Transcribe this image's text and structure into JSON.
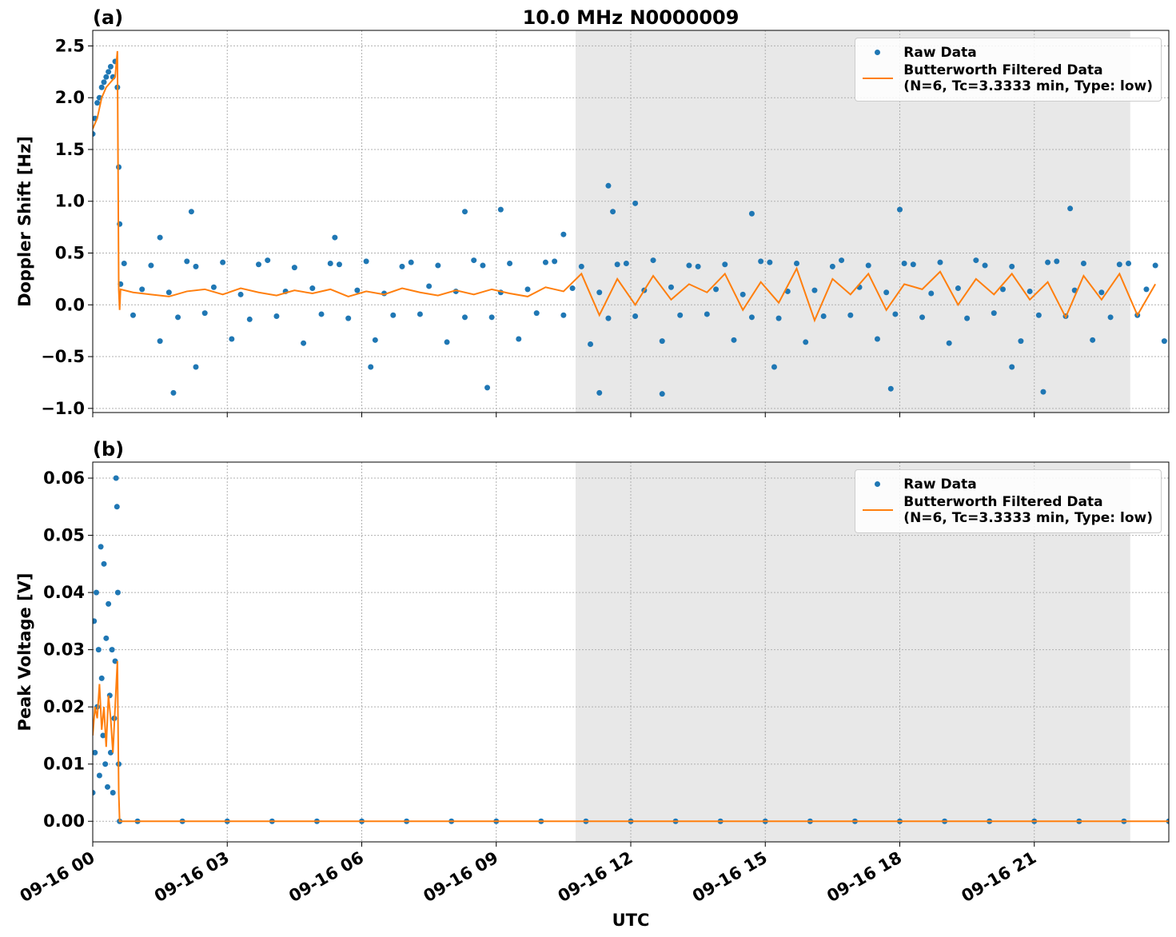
{
  "chart_data": [
    {
      "type": "scatter",
      "title": "10.0 MHz N0000009",
      "panel_label": "(a)",
      "ylabel": "Doppler Shift [Hz]",
      "xlim": [
        0,
        24
      ],
      "xticks": [
        0,
        3,
        6,
        9,
        12,
        15,
        18,
        21
      ],
      "ylim": [
        -1.04,
        2.65
      ],
      "yticks": [
        {
          "value": -1.0,
          "label": "−1.0"
        },
        {
          "value": -0.5,
          "label": "−0.5"
        },
        {
          "value": 0.0,
          "label": "0.0"
        },
        0.5,
        {
          "value": 1.0,
          "label": "1.0"
        },
        1.5,
        {
          "value": 2.0,
          "label": "2.0"
        },
        2.5
      ],
      "grid": true,
      "legend": "upper right",
      "shaded_span": [
        10.77,
        23.14
      ],
      "series": [
        {
          "name": "Raw Data",
          "color": "#1f77b4",
          "mode": "markers",
          "x": [
            0,
            0.05,
            0.1,
            0.15,
            0.2,
            0.25,
            0.3,
            0.35,
            0.4,
            0.45,
            0.5,
            0.55,
            0.58,
            0.6,
            0.62,
            0.7,
            0.9,
            1.1,
            1.3,
            1.5,
            1.7,
            1.9,
            2.1,
            2.3,
            2.5,
            2.7,
            2.9,
            3.1,
            3.3,
            3.5,
            3.7,
            3.9,
            4.1,
            4.3,
            4.5,
            4.7,
            4.9,
            5.1,
            5.3,
            5.5,
            5.7,
            5.9,
            6.1,
            6.3,
            6.5,
            6.7,
            6.9,
            7.1,
            7.3,
            7.5,
            7.7,
            7.9,
            8.1,
            8.3,
            8.5,
            8.7,
            8.9,
            9.1,
            9.3,
            9.5,
            9.7,
            9.9,
            10.1,
            10.3,
            10.5,
            10.7,
            10.9,
            11.1,
            11.3,
            11.5,
            11.7,
            11.9,
            12.1,
            12.3,
            12.5,
            12.7,
            12.9,
            13.1,
            13.3,
            13.5,
            13.7,
            13.9,
            14.1,
            14.3,
            14.5,
            14.7,
            14.9,
            15.1,
            15.3,
            15.5,
            15.7,
            15.9,
            16.1,
            16.3,
            16.5,
            16.7,
            16.9,
            17.1,
            17.3,
            17.5,
            17.7,
            17.9,
            18.1,
            18.3,
            18.5,
            18.7,
            18.9,
            19.1,
            19.3,
            19.5,
            19.7,
            19.9,
            20.1,
            20.3,
            20.5,
            20.7,
            20.9,
            21.1,
            21.3,
            21.5,
            21.7,
            21.9,
            22.1,
            22.3,
            22.5,
            22.7,
            22.9,
            23.1,
            23.3,
            23.5,
            23.7,
            23.9,
            1.5,
            1.8,
            2.2,
            2.3,
            5.4,
            6.2,
            8.3,
            8.8,
            9.1,
            10.5,
            11.3,
            11.5,
            11.6,
            12.1,
            12.7,
            14.7,
            15.2,
            17.8,
            18.0,
            20.5,
            21.2,
            21.8
          ],
          "values": [
            1.65,
            1.8,
            1.95,
            2.0,
            2.1,
            2.15,
            2.2,
            2.25,
            2.3,
            2.2,
            2.35,
            2.1,
            1.33,
            0.78,
            0.2,
            0.4,
            -0.1,
            0.15,
            0.38,
            -0.35,
            0.12,
            -0.12,
            0.42,
            0.37,
            -0.08,
            0.17,
            0.41,
            -0.33,
            0.1,
            -0.14,
            0.39,
            0.43,
            -0.11,
            0.13,
            0.36,
            -0.37,
            0.16,
            -0.09,
            0.4,
            0.39,
            -0.13,
            0.14,
            0.42,
            -0.34,
            0.11,
            -0.1,
            0.37,
            0.41,
            -0.09,
            0.18,
            0.38,
            -0.36,
            0.13,
            -0.12,
            0.43,
            0.38,
            -0.12,
            0.12,
            0.4,
            -0.33,
            0.15,
            -0.08,
            0.41,
            0.42,
            -0.1,
            0.16,
            0.37,
            -0.38,
            0.12,
            -0.13,
            0.39,
            0.4,
            -0.11,
            0.14,
            0.43,
            -0.35,
            0.17,
            -0.1,
            0.38,
            0.37,
            -0.09,
            0.15,
            0.39,
            -0.34,
            0.1,
            -0.12,
            0.42,
            0.41,
            -0.13,
            0.13,
            0.4,
            -0.36,
            0.14,
            -0.11,
            0.37,
            0.43,
            -0.1,
            0.17,
            0.38,
            -0.33,
            0.12,
            -0.09,
            0.4,
            0.39,
            -0.12,
            0.11,
            0.41,
            -0.37,
            0.16,
            -0.13,
            0.43,
            0.38,
            -0.08,
            0.15,
            0.37,
            -0.35,
            0.13,
            -0.1,
            0.41,
            0.42,
            -0.11,
            0.14,
            0.4,
            -0.34,
            0.12,
            -0.12,
            0.39,
            0.4,
            -0.1,
            0.15,
            0.38,
            -0.35,
            0.65,
            -0.85,
            0.9,
            -0.6,
            0.65,
            -0.6,
            0.9,
            -0.8,
            0.92,
            0.68,
            -0.85,
            1.15,
            0.9,
            0.98,
            -0.86,
            0.88,
            -0.6,
            -0.81,
            0.92,
            -0.6,
            -0.84,
            0.93
          ]
        },
        {
          "name": "Butterworth Filtered Data\n(N=6, Tc=3.3333 min, Type: low)",
          "color": "#ff7f0e",
          "mode": "line",
          "x": [
            0,
            0.1,
            0.2,
            0.3,
            0.4,
            0.5,
            0.55,
            0.58,
            0.6,
            0.62,
            0.9,
            1.3,
            1.7,
            2.1,
            2.5,
            2.9,
            3.3,
            3.7,
            4.1,
            4.5,
            4.9,
            5.3,
            5.7,
            6.1,
            6.5,
            6.9,
            7.3,
            7.7,
            8.1,
            8.5,
            8.9,
            9.3,
            9.7,
            10.1,
            10.5,
            10.9,
            11.3,
            11.7,
            12.1,
            12.5,
            12.9,
            13.3,
            13.7,
            14.1,
            14.5,
            14.9,
            15.3,
            15.7,
            16.1,
            16.5,
            16.9,
            17.3,
            17.7,
            18.1,
            18.5,
            18.9,
            19.3,
            19.7,
            20.1,
            20.5,
            20.9,
            21.3,
            21.7,
            22.1,
            22.5,
            22.9,
            23.3,
            23.7
          ],
          "values": [
            1.7,
            1.8,
            2.0,
            2.1,
            2.15,
            2.2,
            2.45,
            0.15,
            -0.05,
            0.15,
            0.12,
            0.1,
            0.08,
            0.13,
            0.15,
            0.1,
            0.16,
            0.12,
            0.09,
            0.14,
            0.11,
            0.15,
            0.08,
            0.13,
            0.1,
            0.16,
            0.12,
            0.09,
            0.14,
            0.1,
            0.15,
            0.11,
            0.08,
            0.17,
            0.13,
            0.3,
            -0.1,
            0.25,
            0.0,
            0.28,
            0.05,
            0.2,
            0.12,
            0.3,
            -0.05,
            0.22,
            0.02,
            0.35,
            -0.15,
            0.25,
            0.1,
            0.3,
            -0.05,
            0.2,
            0.15,
            0.32,
            0.0,
            0.25,
            0.1,
            0.3,
            0.05,
            0.22,
            -0.12,
            0.28,
            0.05,
            0.3,
            -0.1,
            0.2
          ]
        }
      ]
    },
    {
      "type": "scatter",
      "panel_label": "(b)",
      "ylabel": "Peak Voltage [V]",
      "xlabel": "UTC",
      "xlim": [
        0,
        24
      ],
      "xticks": [
        {
          "value": 0,
          "label": "09-16 00"
        },
        {
          "value": 3,
          "label": "09-16 03"
        },
        {
          "value": 6,
          "label": "09-16 06"
        },
        {
          "value": 9,
          "label": "09-16 09"
        },
        {
          "value": 12,
          "label": "09-16 12"
        },
        {
          "value": 15,
          "label": "09-16 15"
        },
        {
          "value": 18,
          "label": "09-16 18"
        },
        {
          "value": 21,
          "label": "09-16 21"
        }
      ],
      "ylim": [
        -0.0036,
        0.0628
      ],
      "yticks": [
        {
          "value": 0.0,
          "label": "0.00"
        },
        0.01,
        0.02,
        0.03,
        0.04,
        0.05,
        0.06
      ],
      "grid": true,
      "legend": "upper right",
      "shaded_span": [
        10.77,
        23.14
      ],
      "series": [
        {
          "name": "Raw Data",
          "color": "#1f77b4",
          "mode": "markers",
          "x": [
            0,
            0.03,
            0.05,
            0.08,
            0.1,
            0.13,
            0.15,
            0.18,
            0.2,
            0.23,
            0.25,
            0.28,
            0.3,
            0.33,
            0.35,
            0.38,
            0.4,
            0.43,
            0.45,
            0.48,
            0.5,
            0.52,
            0.54,
            0.56,
            0.58,
            0.6,
            1,
            2,
            3,
            4,
            5,
            6,
            7,
            8,
            9,
            10,
            11,
            12,
            13,
            14,
            15,
            16,
            17,
            18,
            19,
            20,
            21,
            22,
            23,
            24
          ],
          "values": [
            0.005,
            0.035,
            0.012,
            0.04,
            0.02,
            0.03,
            0.008,
            0.048,
            0.025,
            0.015,
            0.045,
            0.01,
            0.032,
            0.006,
            0.038,
            0.022,
            0.012,
            0.03,
            0.005,
            0.018,
            0.028,
            0.06,
            0.055,
            0.04,
            0.01,
            0.0,
            0,
            0,
            0,
            0,
            0,
            0,
            0,
            0,
            0,
            0,
            0,
            0,
            0,
            0,
            0,
            0,
            0,
            0,
            0,
            0,
            0,
            0,
            0,
            0
          ]
        },
        {
          "name": "Butterworth Filtered Data\n(N=6, Tc=3.3333 min, Type: low)",
          "color": "#ff7f0e",
          "mode": "line",
          "x": [
            0,
            0.05,
            0.1,
            0.15,
            0.2,
            0.25,
            0.3,
            0.35,
            0.4,
            0.45,
            0.5,
            0.55,
            0.58,
            0.6,
            2,
            6,
            10,
            14,
            18,
            22,
            24
          ],
          "values": [
            0.015,
            0.02,
            0.018,
            0.024,
            0.016,
            0.02,
            0.013,
            0.022,
            0.018,
            0.012,
            0.02,
            0.028,
            0.005,
            0.0,
            0,
            0,
            0,
            0,
            0,
            0,
            0
          ]
        }
      ]
    }
  ]
}
